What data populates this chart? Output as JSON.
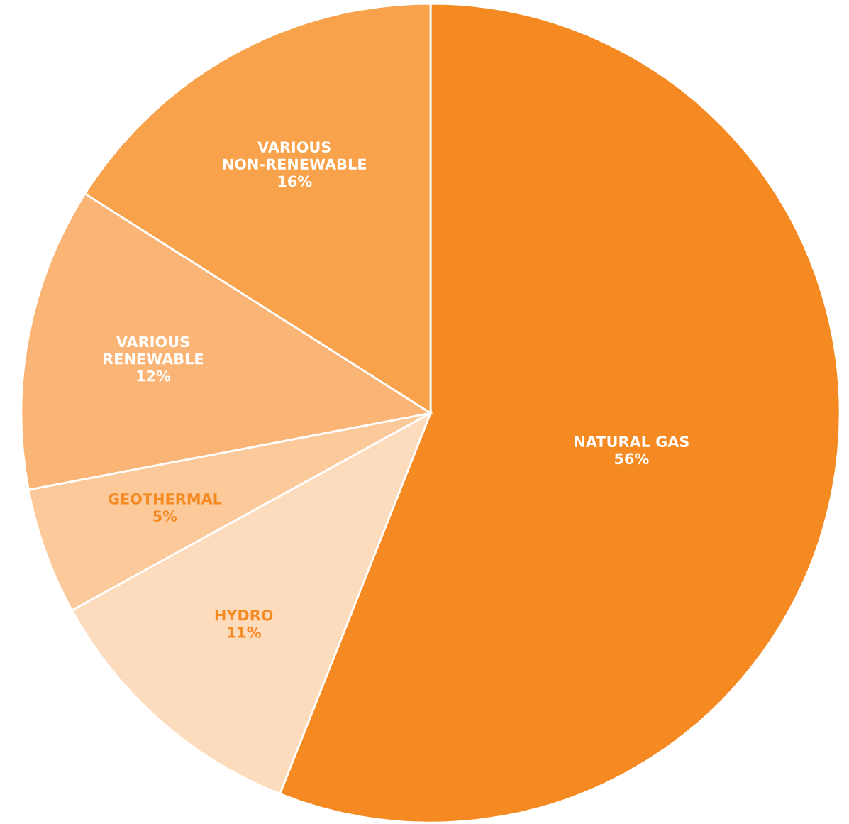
{
  "chart_data": {
    "type": "pie",
    "categories": [
      "NATURAL GAS",
      "HYDRO",
      "GEOTHERMAL",
      "VARIOUS\nRENEWABLE",
      "VARIOUS\nNON-RENEWABLE"
    ],
    "values": [
      56,
      11,
      5,
      12,
      16
    ],
    "value_labels": [
      "56%",
      "11%",
      "5%",
      "12%",
      "16%"
    ],
    "colors": [
      "#f58a22",
      "#fddcbd",
      "#fbc99a",
      "#fab576",
      "#f8a24c"
    ],
    "legend": false
  }
}
